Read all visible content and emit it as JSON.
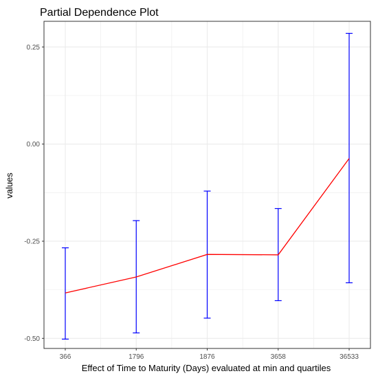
{
  "chart_data": {
    "type": "line",
    "title": "Partial Dependence Plot",
    "xlabel": "Effect of Time to Maturity (Days) evaluated at min and quartiles",
    "ylabel": "values",
    "categories": [
      "366",
      "1796",
      "1876",
      "3658",
      "36533"
    ],
    "series": [
      {
        "values": [
          -0.383,
          -0.342,
          -0.284,
          -0.285,
          -0.037
        ],
        "lower": [
          -0.502,
          -0.486,
          -0.448,
          -0.403,
          -0.357
        ],
        "upper": [
          -0.267,
          -0.197,
          -0.121,
          -0.166,
          0.285
        ]
      }
    ],
    "yticks": [
      -0.5,
      -0.25,
      0.0,
      0.25
    ],
    "ytick_labels": [
      "-0.50",
      "-0.25",
      "0.00",
      "0.25"
    ],
    "ylim": [
      -0.526,
      0.316
    ],
    "grid": true,
    "colors": {
      "line": "#ff0000",
      "errorbar": "#0000ff",
      "grid": "#ebebeb",
      "panel_border": "#333333"
    }
  }
}
